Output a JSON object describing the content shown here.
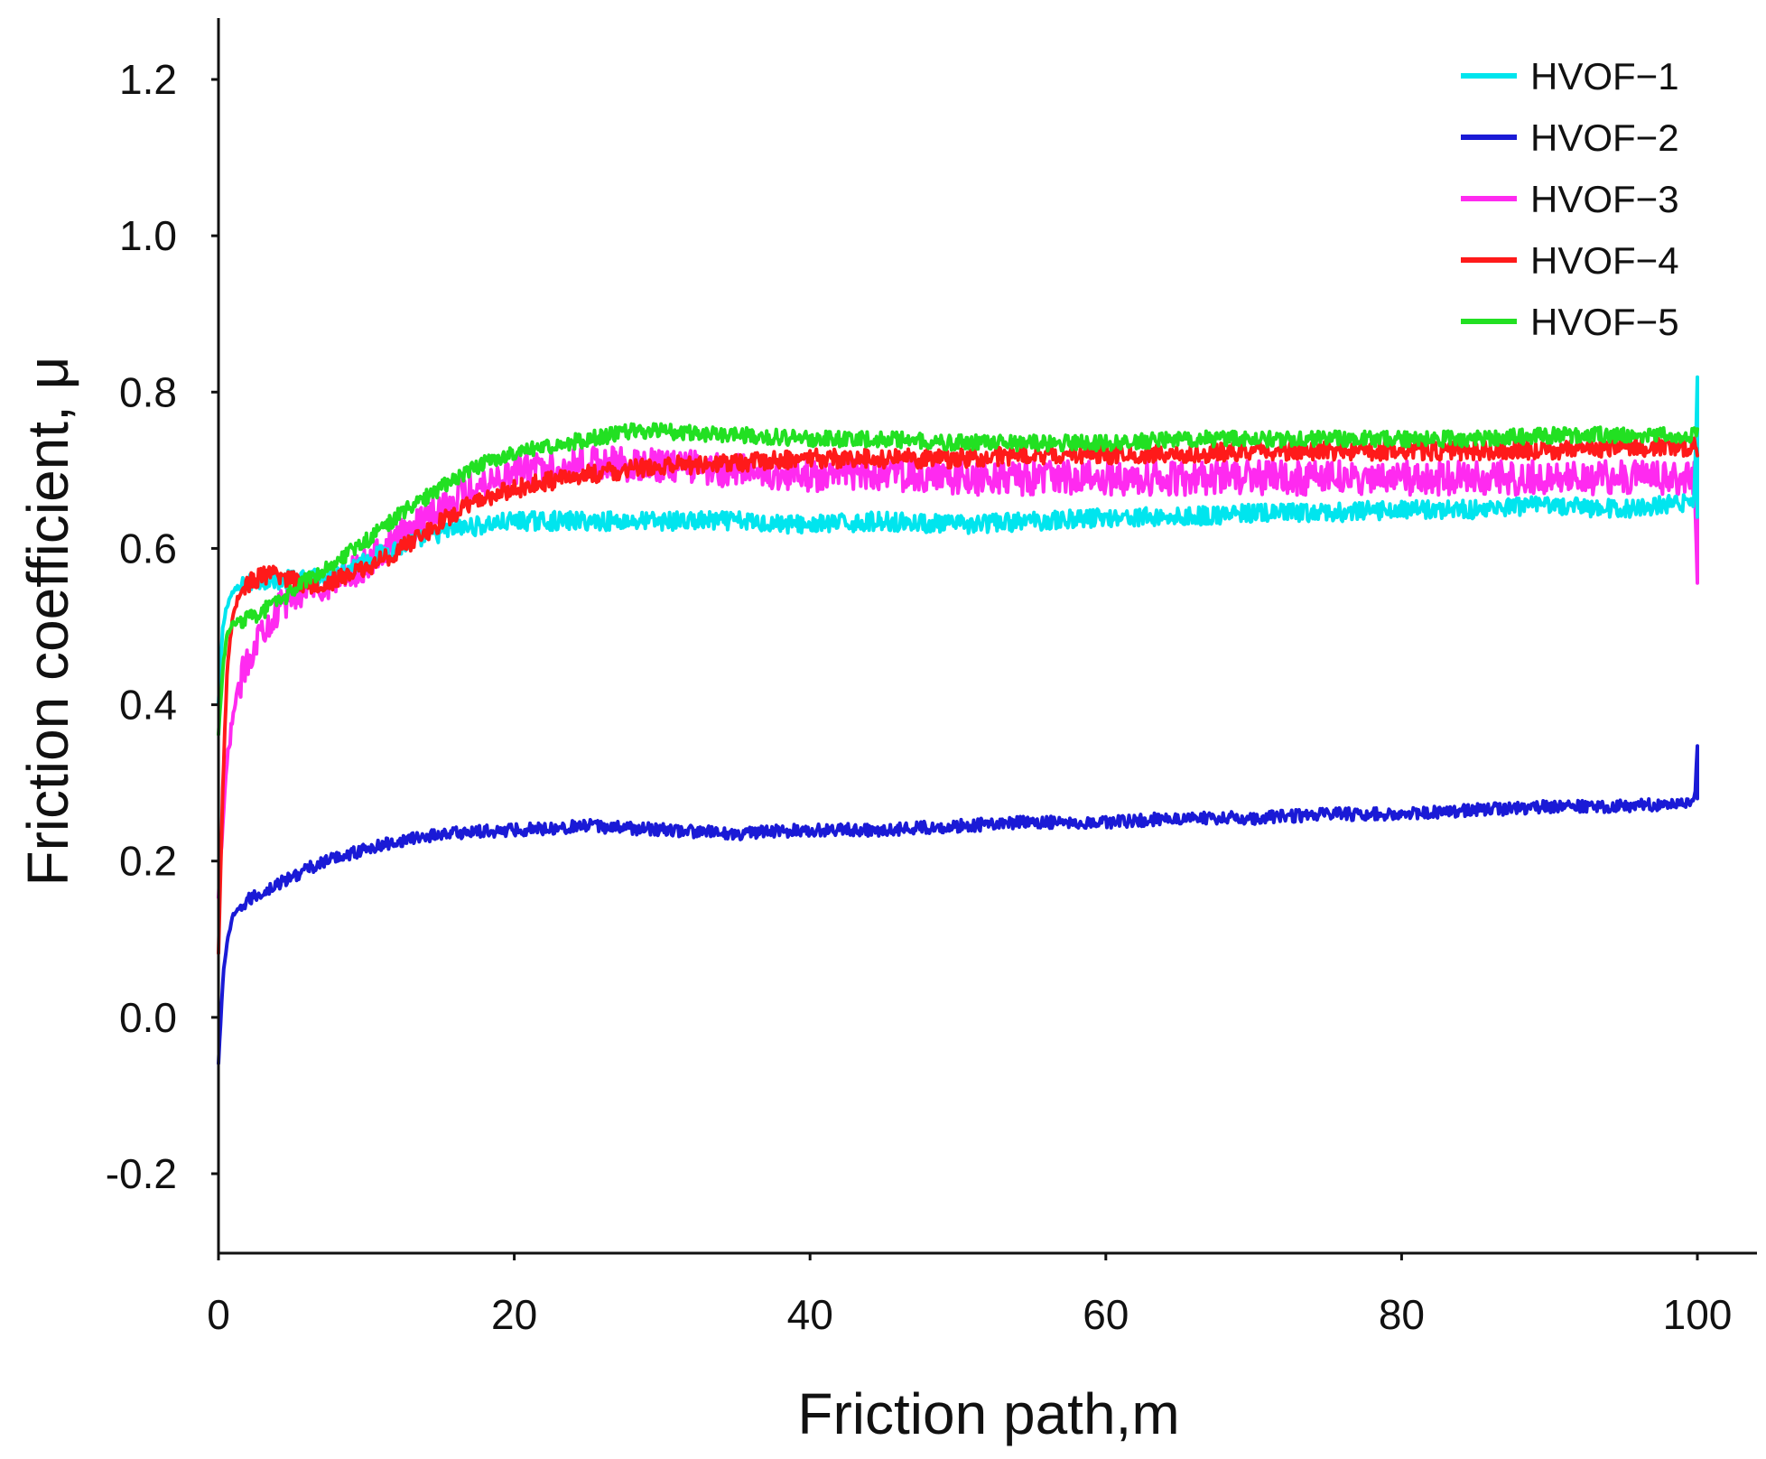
{
  "chart_data": {
    "type": "line",
    "title": "",
    "xlabel": "Friction path,m",
    "ylabel": "Friction coefficient, μ",
    "xlim": [
      0,
      103
    ],
    "ylim": [
      -0.3,
      1.28
    ],
    "xticks": [
      0,
      20,
      40,
      60,
      80,
      100
    ],
    "xtick_labels": [
      "0",
      "20",
      "40",
      "60",
      "80",
      "100"
    ],
    "yticks": [
      -0.2,
      0.0,
      0.2,
      0.4,
      0.6,
      0.8,
      1.0,
      1.2
    ],
    "ytick_labels": [
      "-0.2",
      "0.0",
      "0.2",
      "0.4",
      "0.6",
      "0.8",
      "1.0",
      "1.2"
    ],
    "grid": false,
    "legend_position": "top-right",
    "series": [
      {
        "name": "HVOF−1",
        "color": "#00e5ee",
        "x": [
          0,
          0.3,
          0.6,
          1,
          2,
          3,
          4,
          6,
          8,
          10,
          12,
          14,
          16,
          18,
          20,
          22,
          25,
          30,
          35,
          40,
          45,
          50,
          55,
          60,
          65,
          70,
          75,
          80,
          85,
          90,
          95,
          99.8,
          100,
          100
        ],
        "y": [
          0.4,
          0.5,
          0.53,
          0.545,
          0.555,
          0.56,
          0.56,
          0.56,
          0.57,
          0.585,
          0.6,
          0.615,
          0.625,
          0.63,
          0.635,
          0.635,
          0.635,
          0.635,
          0.635,
          0.63,
          0.635,
          0.63,
          0.635,
          0.64,
          0.64,
          0.645,
          0.645,
          0.65,
          0.65,
          0.655,
          0.65,
          0.66,
          0.82,
          0.64
        ]
      },
      {
        "name": "HVOF−2",
        "color": "#1a1ad6",
        "x": [
          0,
          0.3,
          0.6,
          1,
          2,
          4,
          6,
          8,
          10,
          12,
          15,
          20,
          25,
          30,
          35,
          40,
          45,
          50,
          55,
          60,
          65,
          70,
          75,
          80,
          85,
          90,
          95,
          99.8,
          100,
          100
        ],
        "y": [
          -0.06,
          0.05,
          0.1,
          0.13,
          0.15,
          0.17,
          0.19,
          0.205,
          0.215,
          0.225,
          0.235,
          0.24,
          0.245,
          0.24,
          0.235,
          0.24,
          0.24,
          0.245,
          0.25,
          0.25,
          0.255,
          0.255,
          0.26,
          0.26,
          0.265,
          0.27,
          0.27,
          0.275,
          0.35,
          0.28
        ]
      },
      {
        "name": "HVOF−3",
        "color": "#ff2af0",
        "x": [
          0,
          0.3,
          0.6,
          1,
          1.5,
          2,
          3,
          4,
          5,
          6,
          8,
          10,
          12,
          14,
          16,
          18,
          20,
          22,
          25,
          30,
          35,
          40,
          45,
          50,
          55,
          60,
          65,
          70,
          75,
          80,
          85,
          90,
          95,
          99.8,
          100,
          100
        ],
        "y": [
          0.15,
          0.25,
          0.33,
          0.39,
          0.43,
          0.46,
          0.5,
          0.52,
          0.54,
          0.55,
          0.56,
          0.58,
          0.61,
          0.64,
          0.665,
          0.685,
          0.7,
          0.705,
          0.71,
          0.705,
          0.7,
          0.695,
          0.695,
          0.69,
          0.69,
          0.69,
          0.69,
          0.69,
          0.69,
          0.69,
          0.69,
          0.69,
          0.69,
          0.69,
          0.57,
          0.69
        ]
      },
      {
        "name": "HVOF−4",
        "color": "#ff1a1a",
        "x": [
          0,
          0.3,
          0.6,
          1,
          1.5,
          2,
          3,
          4,
          5,
          6,
          7,
          8,
          10,
          12,
          14,
          16,
          18,
          20,
          22,
          25,
          30,
          35,
          40,
          45,
          50,
          55,
          60,
          65,
          70,
          75,
          80,
          85,
          90,
          95,
          99.8,
          100
        ],
        "y": [
          0.08,
          0.3,
          0.45,
          0.52,
          0.545,
          0.555,
          0.565,
          0.565,
          0.56,
          0.555,
          0.555,
          0.56,
          0.575,
          0.595,
          0.62,
          0.645,
          0.665,
          0.675,
          0.685,
          0.695,
          0.705,
          0.71,
          0.715,
          0.715,
          0.715,
          0.72,
          0.72,
          0.72,
          0.725,
          0.725,
          0.725,
          0.725,
          0.725,
          0.73,
          0.73,
          0.73
        ]
      },
      {
        "name": "HVOF−5",
        "color": "#22e022",
        "x": [
          0,
          0.3,
          0.6,
          1,
          2,
          3,
          4,
          5,
          6,
          8,
          10,
          12,
          14,
          16,
          18,
          20,
          22,
          25,
          28,
          30,
          35,
          40,
          45,
          50,
          55,
          60,
          65,
          70,
          75,
          80,
          85,
          90,
          95,
          99.8,
          100
        ],
        "y": [
          0.36,
          0.45,
          0.49,
          0.505,
          0.51,
          0.52,
          0.53,
          0.545,
          0.56,
          0.585,
          0.61,
          0.64,
          0.665,
          0.69,
          0.71,
          0.72,
          0.73,
          0.74,
          0.75,
          0.75,
          0.745,
          0.74,
          0.74,
          0.735,
          0.735,
          0.735,
          0.74,
          0.74,
          0.74,
          0.74,
          0.74,
          0.745,
          0.745,
          0.745,
          0.745
        ]
      }
    ]
  }
}
